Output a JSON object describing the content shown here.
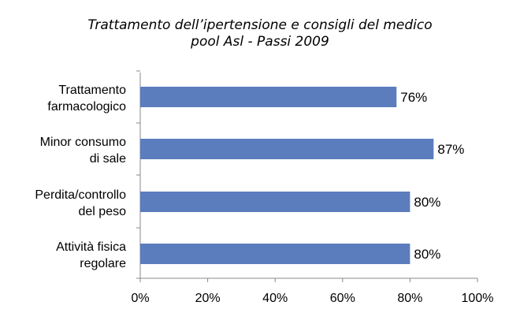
{
  "chart_data": {
    "type": "bar",
    "orientation": "horizontal",
    "title": "Trattamento dell’ipertensione e consigli del medico",
    "subtitle": "pool Asl - Passi 2009",
    "categories": [
      [
        "Trattamento",
        "farmacologico"
      ],
      [
        "Minor consumo",
        "di sale"
      ],
      [
        "Perdita/controllo",
        "del peso"
      ],
      [
        "Attività fisica",
        "regolare"
      ]
    ],
    "values": [
      76,
      87,
      80,
      80
    ],
    "value_labels": [
      "76%",
      "87%",
      "80%",
      "80%"
    ],
    "xlim": [
      0,
      100
    ],
    "xticks": [
      0,
      20,
      40,
      60,
      80,
      100
    ],
    "xtick_labels": [
      "0%",
      "20%",
      "40%",
      "60%",
      "80%",
      "100%"
    ],
    "grid": false,
    "legend": "none",
    "bar_color": "#5B7DBE"
  }
}
